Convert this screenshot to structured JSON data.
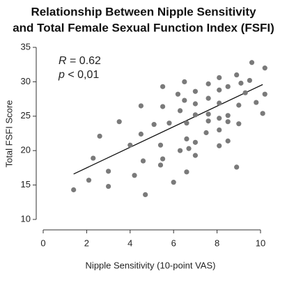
{
  "chart_data": {
    "type": "scatter",
    "title": [
      "Relationship Between Nipple Sensitivity",
      "and Total Female Sexual Function Index (FSFI)"
    ],
    "x_label": "Nipple Sensitivity (10-point VAS)",
    "y_label": "Total FSFI Score",
    "xlim": [
      0,
      10
    ],
    "xticks": [
      0,
      2,
      4,
      6,
      8,
      10
    ],
    "ylim": [
      10,
      35
    ],
    "yticks": [
      10,
      15,
      20,
      25,
      30,
      35
    ],
    "color": "#7a7a7a",
    "annotations": [
      {
        "symbol": "R",
        "text": " = 0.62"
      },
      {
        "symbol": "p",
        "text": " < 0,01"
      }
    ],
    "trendline": {
      "x": [
        1.4,
        10.1
      ],
      "y": [
        16.6,
        29.6
      ]
    },
    "x": [
      1.4,
      2.1,
      2.3,
      2.6,
      3.0,
      3.0,
      3.5,
      4.0,
      4.2,
      4.5,
      4.5,
      4.6,
      4.7,
      5.1,
      5.4,
      5.5,
      5.5,
      5.5,
      5.4,
      5.8,
      6.0,
      6.2,
      6.3,
      6.3,
      6.5,
      6.5,
      6.6,
      6.6,
      6.7,
      6.6,
      7.0,
      7.0,
      7.0,
      7.0,
      7.0,
      7.6,
      7.6,
      7.6,
      7.6,
      7.5,
      8.1,
      8.1,
      8.1,
      8.1,
      8.1,
      8.1,
      8.5,
      8.5,
      8.5,
      8.5,
      8.9,
      8.9,
      9.0,
      9.0,
      9.1,
      9.3,
      9.6,
      10.1,
      9.5,
      10.2,
      10.2,
      9.8
    ],
    "y": [
      14.3,
      15.7,
      18.9,
      22.1,
      17.0,
      14.8,
      24.2,
      20.8,
      16.4,
      26.5,
      22.4,
      18.5,
      13.6,
      23.8,
      20.8,
      29.3,
      26.4,
      18.8,
      17.9,
      24.0,
      15.4,
      28.2,
      25.8,
      20.0,
      30.0,
      27.3,
      24.0,
      21.7,
      20.3,
      16.9,
      28.6,
      26.8,
      25.2,
      21.2,
      19.3,
      29.7,
      27.6,
      25.3,
      24.3,
      22.6,
      30.6,
      28.8,
      26.9,
      24.7,
      23.0,
      20.7,
      29.3,
      25.1,
      24.2,
      21.4,
      31.0,
      17.6,
      26.6,
      23.9,
      29.8,
      28.4,
      32.8,
      25.4,
      30.2,
      32.0,
      28.2,
      27.0
    ]
  }
}
